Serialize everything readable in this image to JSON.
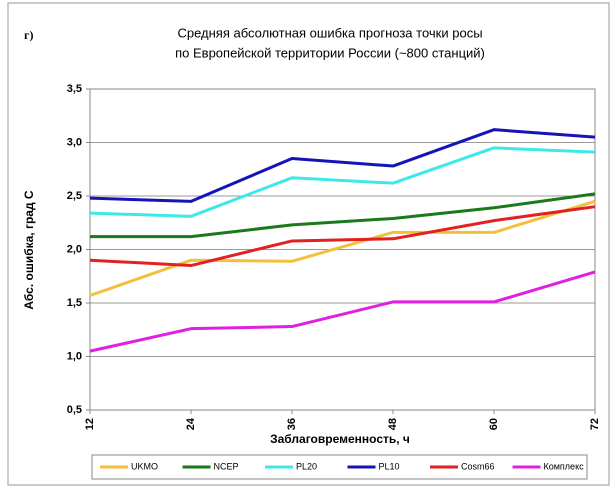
{
  "chart_data": {
    "type": "line",
    "panel_label": "г)",
    "title": "Средняя абсолютная ошибка прогноза точки росы",
    "subtitle": "по Европейской территории России (~800 станций)",
    "x_label": "Заблаговременность, ч",
    "y_label": "Абс. ошибка, град С",
    "x": [
      12,
      24,
      36,
      48,
      60,
      72
    ],
    "xlim": [
      12,
      72
    ],
    "xticks": [
      12,
      24,
      36,
      48,
      60,
      72
    ],
    "ylim": [
      0.5,
      3.5
    ],
    "yticks": [
      {
        "value": 0.5,
        "label": "0,5"
      },
      {
        "value": 1.0,
        "label": "1,0"
      },
      {
        "value": 1.5,
        "label": "1,5"
      },
      {
        "value": 2.0,
        "label": "2,0"
      },
      {
        "value": 2.5,
        "label": "2,5"
      },
      {
        "value": 3.0,
        "label": "3,0"
      },
      {
        "value": 3.5,
        "label": "3,5"
      }
    ],
    "grid": true,
    "legend": "bottom",
    "series": [
      {
        "name": "UKMO",
        "color": "#f2c03a",
        "values": [
          1.57,
          1.9,
          1.89,
          2.16,
          2.16,
          2.45
        ]
      },
      {
        "name": "NCEP",
        "color": "#1a7a1a",
        "values": [
          2.12,
          2.12,
          2.23,
          2.29,
          2.39,
          2.52
        ]
      },
      {
        "name": "PL20",
        "color": "#3ee8e8",
        "values": [
          2.34,
          2.31,
          2.67,
          2.62,
          2.95,
          2.91
        ]
      },
      {
        "name": "PL10",
        "color": "#1414b8",
        "values": [
          2.48,
          2.45,
          2.85,
          2.78,
          3.12,
          3.05
        ]
      },
      {
        "name": "Cosm66",
        "color": "#e02222",
        "values": [
          1.9,
          1.85,
          2.08,
          2.1,
          2.27,
          2.4
        ]
      },
      {
        "name": "Комплекс",
        "color": "#e020e0",
        "values": [
          1.05,
          1.26,
          1.28,
          1.51,
          1.51,
          1.79
        ]
      }
    ]
  }
}
